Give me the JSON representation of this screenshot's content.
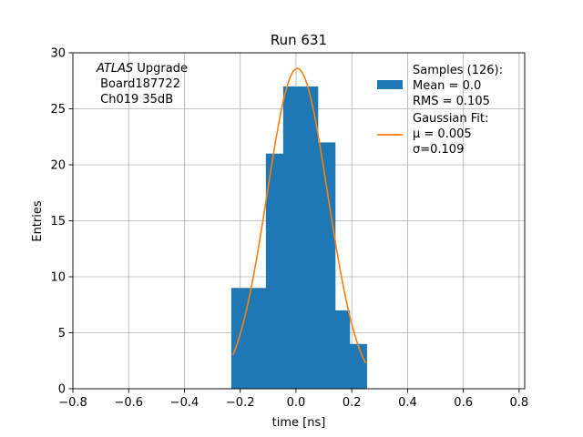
{
  "chart_data": {
    "type": "bar",
    "title": "Run 631",
    "xlabel": "time [ns]",
    "ylabel": "Entries",
    "xlim": [
      -0.8,
      0.82
    ],
    "ylim": [
      0,
      30
    ],
    "xticks": [
      -0.8,
      -0.6,
      -0.4,
      -0.2,
      0.0,
      0.2,
      0.4,
      0.6,
      0.8
    ],
    "xtick_labels": [
      "−0.8",
      "−0.6",
      "−0.4",
      "−0.2",
      "0.0",
      "0.2",
      "0.4",
      "0.6",
      "0.8"
    ],
    "yticks": [
      0,
      5,
      10,
      15,
      20,
      25,
      30
    ],
    "ytick_labels": [
      "0",
      "5",
      "10",
      "15",
      "20",
      "25",
      "30"
    ],
    "grid": true,
    "legend_position": "top-right",
    "annotation": {
      "line1_italic": "ATLAS",
      "line1_rest": " Upgrade",
      "line2": " Board187722",
      "line3": " Ch019 35dB"
    },
    "histogram": {
      "name": "Samples (126):",
      "color": "#1f77b4",
      "bins": [
        {
          "x0": -0.232,
          "x1": -0.17,
          "count": 9
        },
        {
          "x0": -0.17,
          "x1": -0.108,
          "count": 9
        },
        {
          "x0": -0.108,
          "x1": -0.046,
          "count": 21
        },
        {
          "x0": -0.046,
          "x1": 0.016,
          "count": 27
        },
        {
          "x0": 0.016,
          "x1": 0.078,
          "count": 27
        },
        {
          "x0": 0.078,
          "x1": 0.14,
          "count": 22
        },
        {
          "x0": 0.14,
          "x1": 0.192,
          "count": 7
        },
        {
          "x0": 0.192,
          "x1": 0.253,
          "count": 4
        }
      ]
    },
    "fit": {
      "name": "Gaussian Fit:",
      "color": "#ff7f0e",
      "mu": 0.005,
      "sigma": 0.109,
      "amplitude": 28.6,
      "x_range": [
        -0.226,
        0.25
      ]
    },
    "legend": [
      {
        "kind": "patch",
        "color": "#1f77b4",
        "lines": [
          "Samples (126):",
          " Mean = 0.0",
          " RMS = 0.105"
        ]
      },
      {
        "kind": "line",
        "color": "#ff7f0e",
        "lines": [
          "Gaussian Fit:",
          " μ = 0.005",
          " σ=0.109"
        ]
      }
    ]
  }
}
